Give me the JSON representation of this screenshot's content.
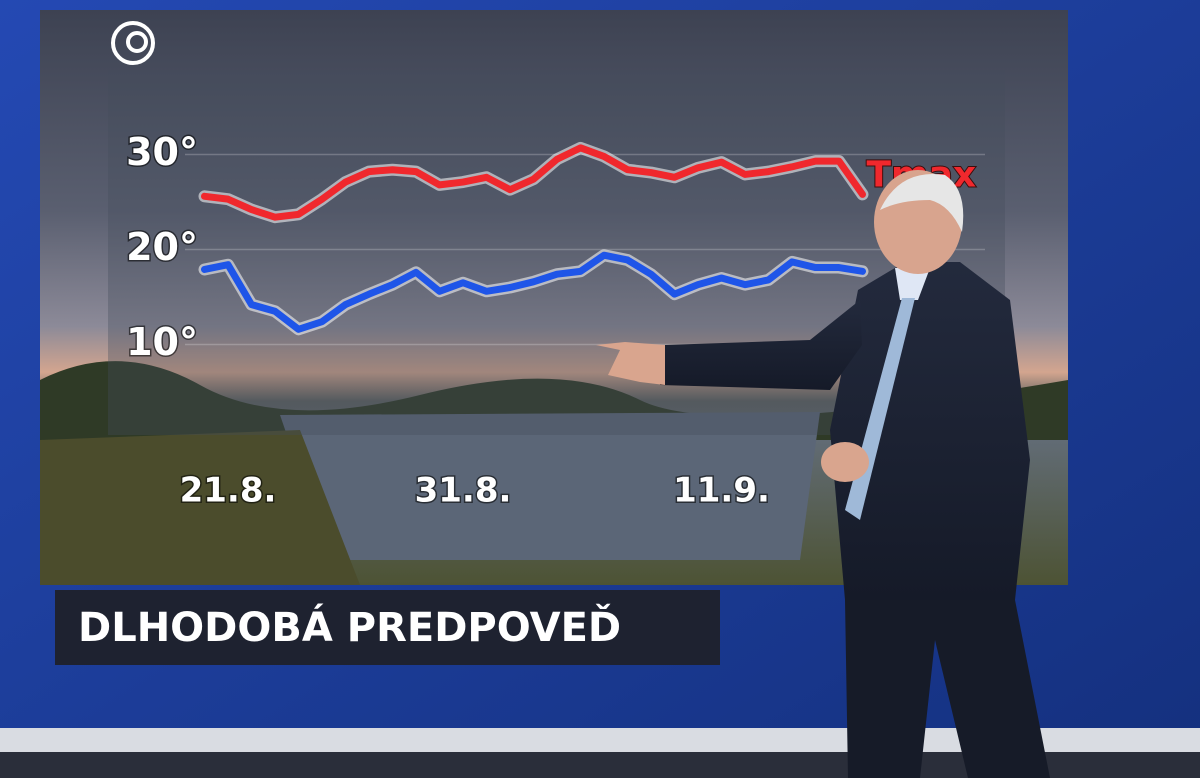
{
  "chart_data": {
    "type": "line",
    "title": "DLHODOBÁ PREDPOVEĎ",
    "categories": [
      null,
      "21.8.",
      null,
      null,
      null,
      null,
      null,
      null,
      null,
      null,
      null,
      "31.8.",
      null,
      null,
      null,
      null,
      null,
      null,
      null,
      null,
      null,
      null,
      "11.9.",
      null,
      null,
      null,
      null,
      null,
      null
    ],
    "series": [
      {
        "name": "Tmax",
        "color": "#f0282d",
        "values": [
          25.6,
          25.3,
          24.2,
          23.4,
          23.7,
          25.3,
          27.1,
          28.2,
          28.4,
          28.2,
          26.8,
          27.1,
          27.6,
          26.3,
          27.4,
          29.5,
          30.7,
          29.8,
          28.4,
          28.1,
          27.6,
          28.6,
          29.2,
          27.9,
          28.2,
          28.7,
          29.3,
          29.3,
          25.8
        ]
      },
      {
        "color": "#1f55e8",
        "values": [
          17.9,
          18.4,
          14.2,
          13.5,
          11.6,
          12.4,
          14.2,
          15.3,
          16.3,
          17.6,
          15.6,
          16.5,
          15.6,
          16.0,
          16.6,
          17.4,
          17.7,
          19.4,
          18.9,
          17.4,
          15.3,
          16.3,
          17.0,
          16.3,
          16.8,
          18.7,
          18.1,
          18.1,
          17.7
        ]
      }
    ],
    "ylim": [
      1,
      37
    ],
    "yticks": [
      {
        "value": 10,
        "label": "10°"
      },
      {
        "value": 20,
        "label": "20°"
      },
      {
        "value": 30,
        "label": "30°"
      }
    ],
    "grid": true
  }
}
